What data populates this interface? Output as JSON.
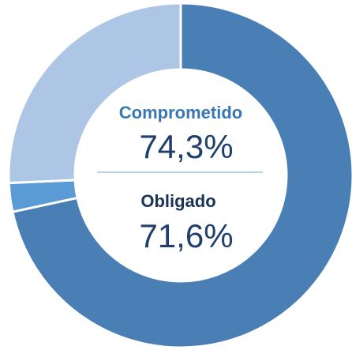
{
  "chart_data": {
    "type": "donut",
    "values": [
      71.6,
      2.7,
      25.7
    ],
    "colors": [
      "#4a7fb5",
      "#5b9bd5",
      "#adc6e5"
    ],
    "center_labels": [
      "Comprometido",
      "74,3%",
      "Obligado",
      "71,6%"
    ]
  }
}
